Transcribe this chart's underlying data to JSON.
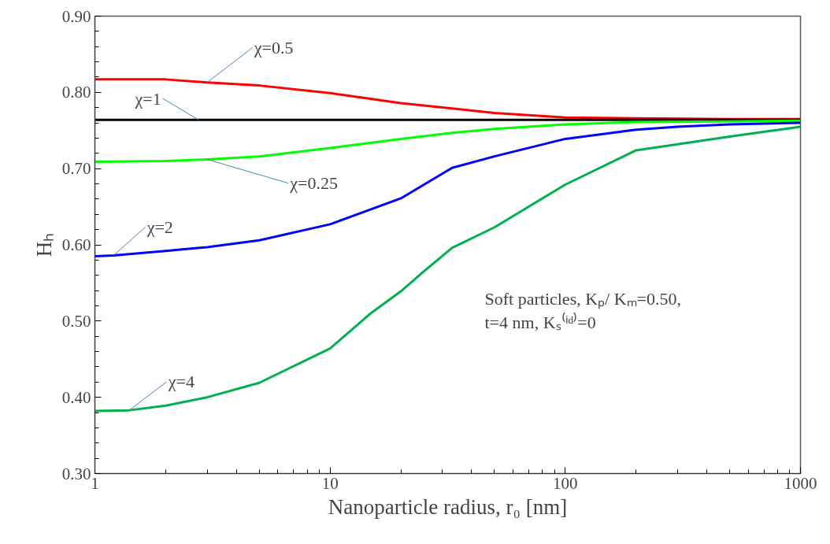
{
  "chart_data": {
    "type": "line",
    "xlabel": "Nanoparticle radius, r₀ [nm]",
    "ylabel": "Hₕ",
    "log": "x",
    "grid": false,
    "marker": "none",
    "line_style": "solid",
    "xlim": [
      1,
      1000
    ],
    "xticks": [
      1,
      10,
      100,
      1000
    ],
    "ylim": [
      0.3,
      0.9
    ],
    "yticks": [
      {
        "value": 0.3,
        "label": "0.30"
      },
      {
        "value": 0.4,
        "label": "0.40"
      },
      {
        "value": 0.5,
        "label": "0.50"
      },
      {
        "value": 0.6,
        "label": "0.60"
      },
      {
        "value": 0.7,
        "label": "0.70"
      },
      {
        "value": 0.8,
        "label": "0.80"
      },
      {
        "value": 0.9,
        "label": "0.90"
      }
    ],
    "series": [
      {
        "color": "#ff0000",
        "x": [
          1,
          2,
          3,
          5,
          10,
          20,
          33,
          50,
          100,
          200,
          500,
          1000
        ],
        "values": [
          0.817,
          0.817,
          0.813,
          0.809,
          0.799,
          0.786,
          0.779,
          0.773,
          0.767,
          0.766,
          0.765,
          0.765
        ]
      },
      {
        "color": "#000000",
        "x": [
          1,
          2.76,
          1000
        ],
        "values": [
          0.764,
          0.764,
          0.764
        ]
      },
      {
        "color": "#00ff00",
        "x": [
          1,
          2,
          3,
          5,
          10,
          20,
          33,
          50,
          100,
          200,
          500,
          1000
        ],
        "values": [
          0.709,
          0.71,
          0.712,
          0.716,
          0.727,
          0.739,
          0.747,
          0.752,
          0.758,
          0.761,
          0.762,
          0.763
        ]
      },
      {
        "color": "#0000ff",
        "x": [
          1,
          1.2,
          2,
          3,
          5,
          10,
          20,
          33,
          50,
          100,
          200,
          300,
          500,
          1000
        ],
        "values": [
          0.585,
          0.586,
          0.592,
          0.597,
          0.606,
          0.627,
          0.661,
          0.701,
          0.716,
          0.739,
          0.751,
          0.755,
          0.758,
          0.76
        ]
      },
      {
        "color": "#00b050",
        "x": [
          1,
          1.4,
          2,
          3,
          5,
          10,
          15,
          20,
          25,
          33,
          50,
          100,
          200,
          500,
          1000
        ],
        "values": [
          0.382,
          0.383,
          0.389,
          0.4,
          0.419,
          0.464,
          0.511,
          0.539,
          0.565,
          0.596,
          0.623,
          0.679,
          0.724,
          0.742,
          0.755
        ]
      }
    ],
    "annotations": [
      {
        "text": "χ=0.5",
        "x": 3,
        "y": 0.813
      },
      {
        "text": "χ=1",
        "x": 2.76,
        "y": 0.764
      },
      {
        "text": "χ=0.25",
        "x": 3,
        "y": 0.712
      },
      {
        "text": "χ=2",
        "x": 1.2,
        "y": 0.586
      },
      {
        "text": "χ=4",
        "x": 1.4,
        "y": 0.383
      },
      "Soft particles, Kₚ/ Kₘ=0.50,\nt=4 nm, Kₛ⁽ⁱᵈ⁾=0"
    ]
  }
}
